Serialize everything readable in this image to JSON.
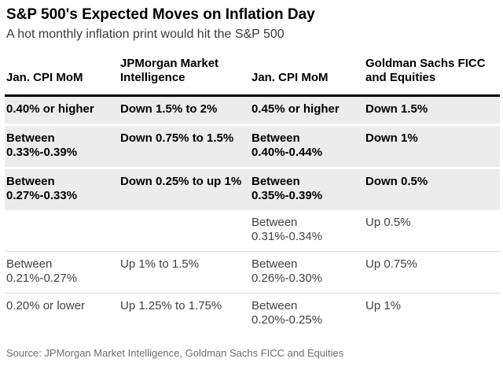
{
  "chart_data": {
    "type": "table",
    "title": "S&P 500's Expected Moves on Inflation Day",
    "subtitle": "A hot monthly inflation print would hit the S&P 500",
    "columns": [
      "Jan. CPI MoM",
      "JPMorgan Market Intelligence",
      "Jan. CPI MoM",
      "Goldman Sachs FICC and Equities"
    ],
    "rows": [
      [
        "0.40% or higher",
        "Down 1.5% to 2%",
        "0.45% or higher",
        "Down 1.5%"
      ],
      [
        "Between 0.33%-0.39%",
        "Down 0.75% to 1.5%",
        "Between 0.40%-0.44%",
        "Down 1%"
      ],
      [
        "Between 0.27%-0.33%",
        "Down 0.25% to up 1%",
        "Between 0.35%-0.39%",
        "Down 0.5%"
      ],
      [
        "",
        "",
        "Between 0.31%-0.34%",
        "Up 0.5%"
      ],
      [
        "Between 0.21%-0.27%",
        "Up 1% to 1.5%",
        "Between 0.26%-0.30%",
        "Up 0.75%"
      ],
      [
        "0.20% or lower",
        "Up 1.25% to 1.75%",
        "Between 0.20%-0.25%",
        "Up 1%"
      ]
    ],
    "highlighted_rows": [
      0,
      1,
      2
    ],
    "source": "Source: JPMorgan Market Intelligence, Goldman Sachs FICC and Equities",
    "layout": {
      "legend": "none",
      "grid": "off",
      "highlight_style": "top three rows shaded gray with bold text"
    }
  },
  "colors": {
    "background": "#ffffff",
    "title_text": "#000000",
    "subtitle_text": "#3a3a3a",
    "highlight_row_bg": "#ececec",
    "header_rule": "#000000",
    "row_divider": "#dcdcdc",
    "plain_row_text": "#424242",
    "source_text": "#6e6e6e"
  }
}
